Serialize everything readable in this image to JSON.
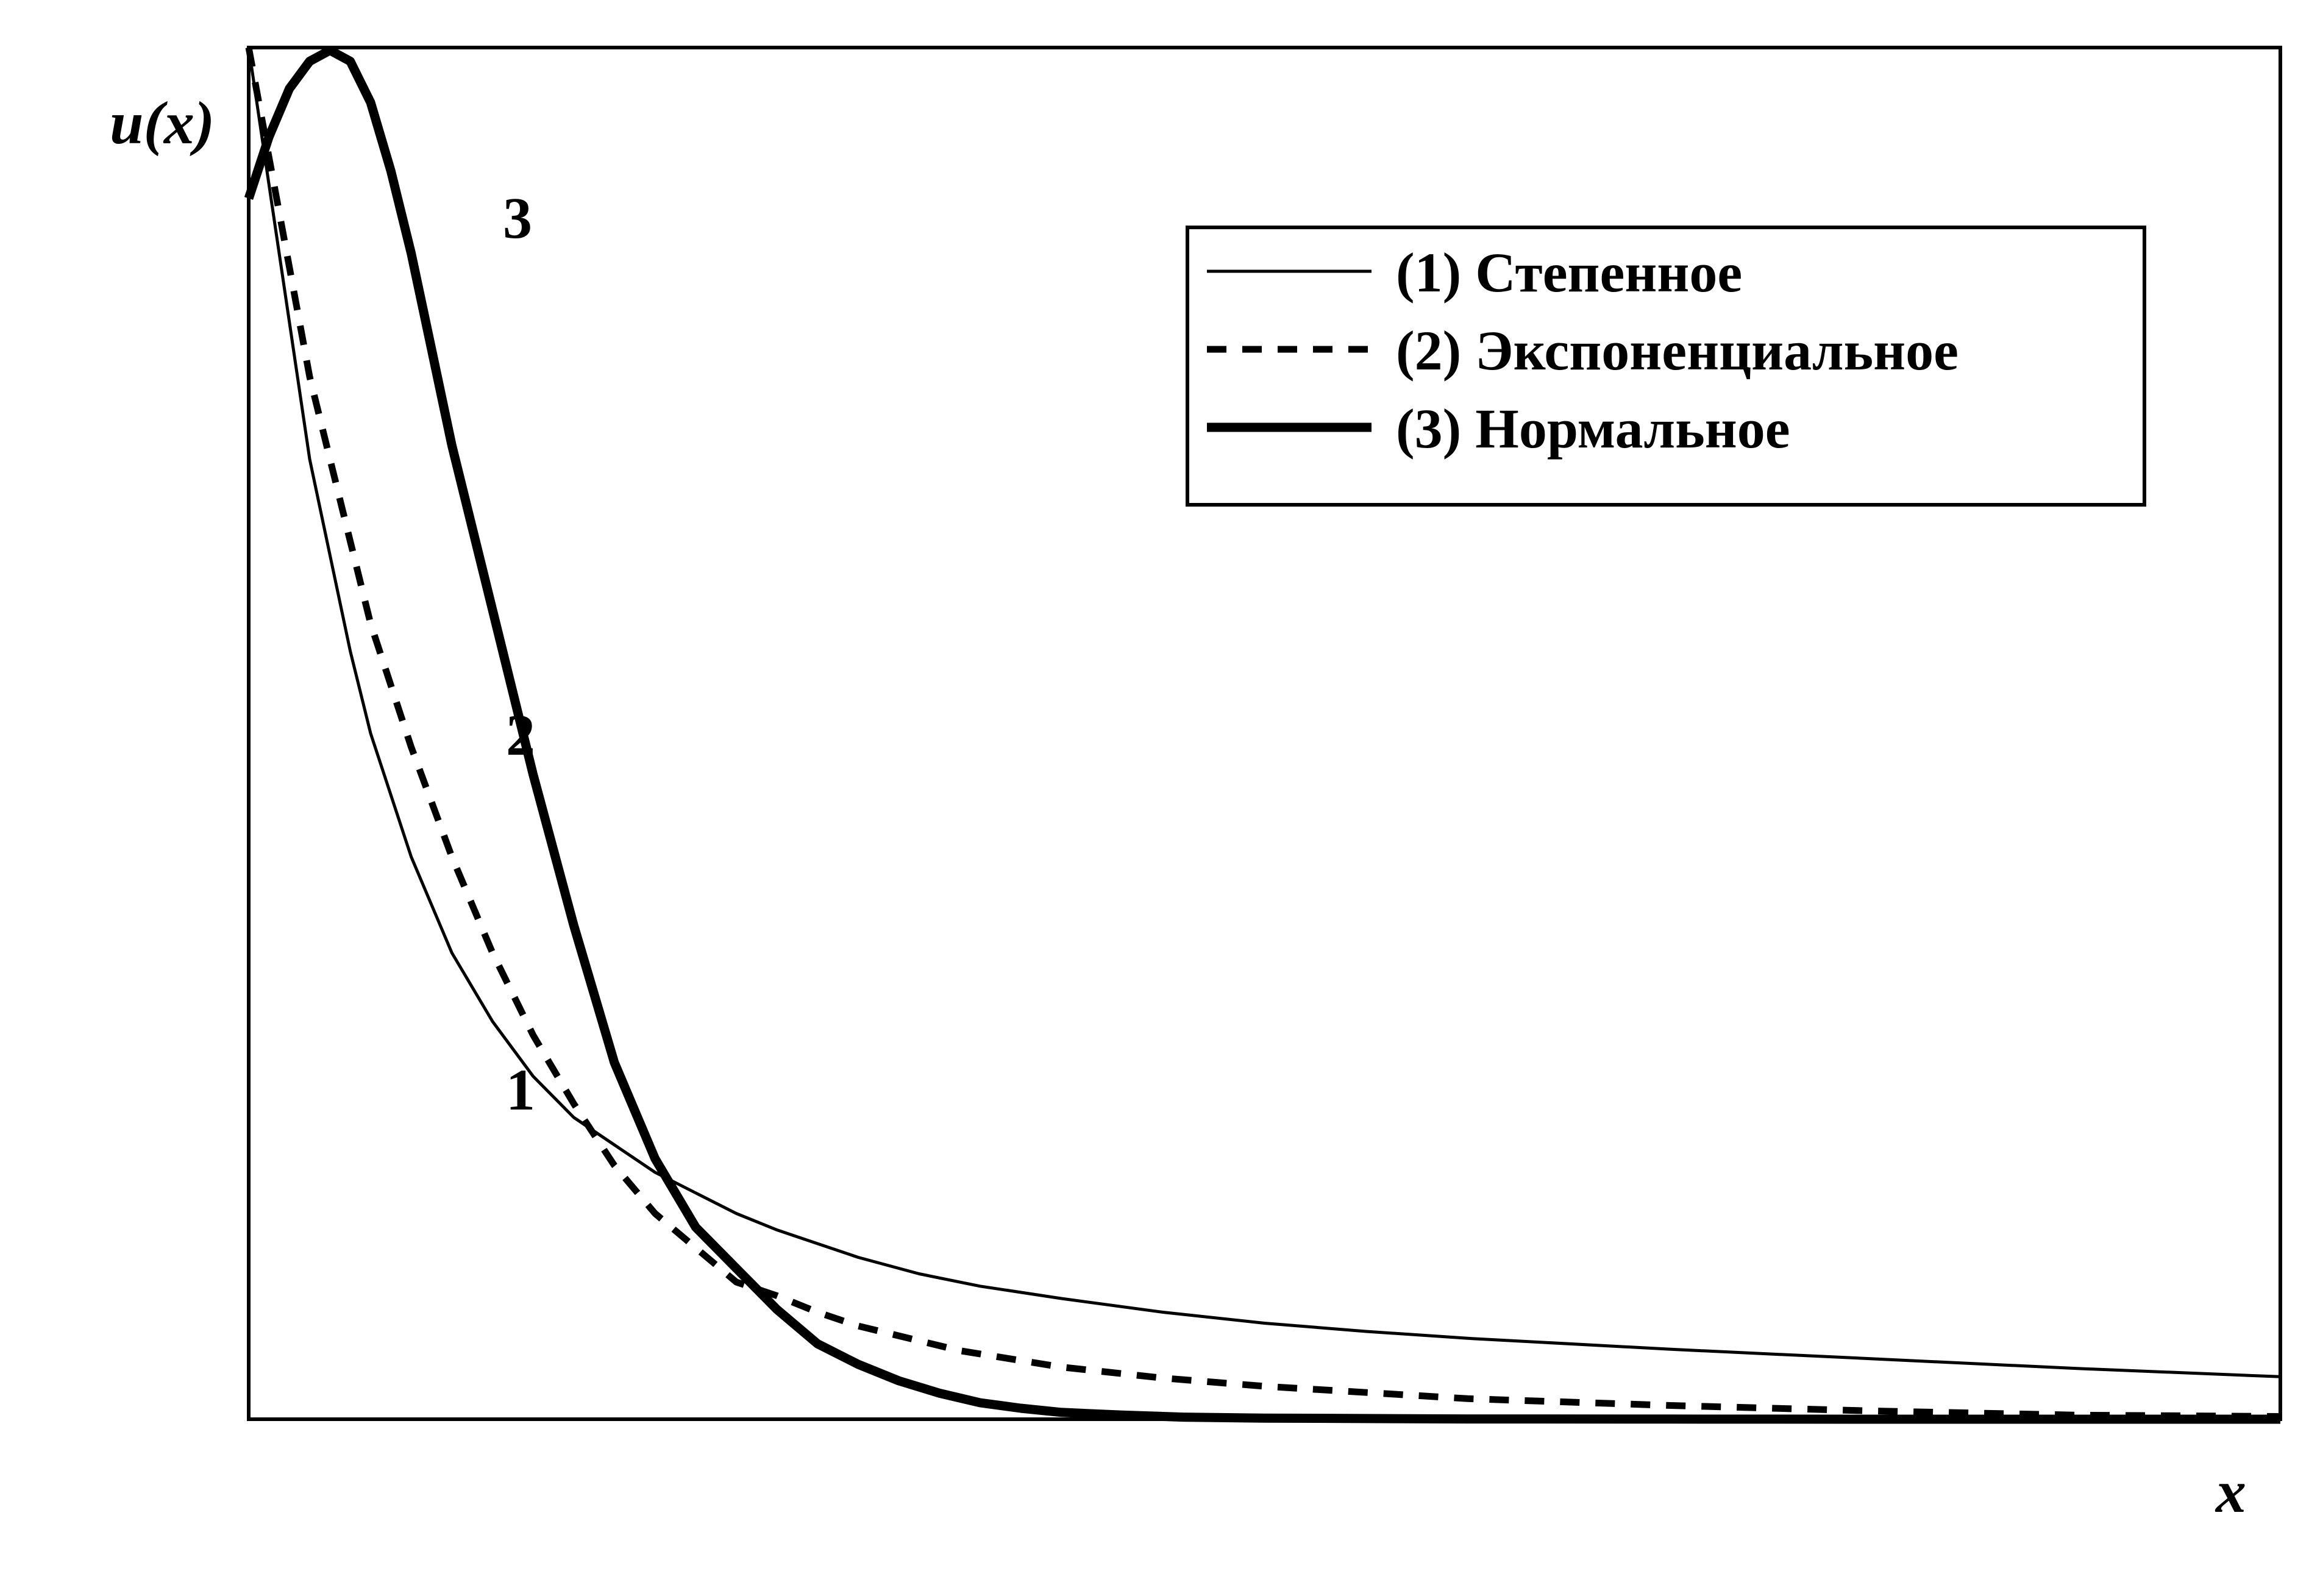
{
  "chart_data": {
    "type": "line",
    "xlabel": "x",
    "ylabel": "u(x)",
    "xlim": [
      0,
      10
    ],
    "ylim": [
      0,
      1
    ],
    "grid": false,
    "legend_position": "top-right",
    "series": [
      {
        "name": "(1) Степенное",
        "curve_label": "1",
        "style": "thin-solid",
        "x": [
          0,
          0.1,
          0.2,
          0.3,
          0.4,
          0.5,
          0.6,
          0.8,
          1.0,
          1.2,
          1.4,
          1.6,
          1.8,
          2.0,
          2.2,
          2.4,
          2.6,
          2.8,
          3.0,
          3.3,
          3.6,
          4.0,
          4.5,
          5.0,
          5.5,
          6.0,
          7.0,
          8.0,
          9.0,
          10.0
        ],
        "y": [
          1.0,
          0.9,
          0.8,
          0.7,
          0.63,
          0.56,
          0.5,
          0.41,
          0.34,
          0.29,
          0.25,
          0.22,
          0.2,
          0.18,
          0.165,
          0.15,
          0.138,
          0.128,
          0.118,
          0.106,
          0.097,
          0.088,
          0.078,
          0.07,
          0.064,
          0.059,
          0.051,
          0.044,
          0.037,
          0.031
        ]
      },
      {
        "name": "(2) Экспоненциальное",
        "curve_label": "2",
        "style": "dashed",
        "x": [
          0,
          0.1,
          0.2,
          0.3,
          0.4,
          0.5,
          0.6,
          0.8,
          1.0,
          1.2,
          1.4,
          1.6,
          1.8,
          2.0,
          2.2,
          2.4,
          2.6,
          2.8,
          3.0,
          3.5,
          4.0,
          4.5,
          5.0,
          6.0,
          7.0,
          8.0,
          9.0,
          10.0
        ],
        "y": [
          1.0,
          0.92,
          0.84,
          0.76,
          0.7,
          0.64,
          0.58,
          0.49,
          0.41,
          0.34,
          0.28,
          0.23,
          0.185,
          0.15,
          0.125,
          0.1,
          0.09,
          0.078,
          0.068,
          0.05,
          0.038,
          0.03,
          0.024,
          0.015,
          0.01,
          0.006,
          0.003,
          0.002
        ]
      },
      {
        "name": "(3) Нормальное",
        "curve_label": "3",
        "style": "thick-solid",
        "x": [
          0,
          0.1,
          0.2,
          0.3,
          0.4,
          0.5,
          0.6,
          0.7,
          0.8,
          0.9,
          1.0,
          1.2,
          1.4,
          1.6,
          1.8,
          2.0,
          2.2,
          2.4,
          2.6,
          2.8,
          3.0,
          3.2,
          3.4,
          3.6,
          3.8,
          4.0,
          4.3,
          4.6,
          5.0,
          6.0,
          7.0,
          8.0,
          10.0
        ],
        "y": [
          0.89,
          0.935,
          0.97,
          0.99,
          0.998,
          0.99,
          0.96,
          0.91,
          0.85,
          0.78,
          0.71,
          0.59,
          0.47,
          0.36,
          0.26,
          0.19,
          0.14,
          0.11,
          0.08,
          0.055,
          0.04,
          0.028,
          0.019,
          0.012,
          0.008,
          0.005,
          0.003,
          0.0015,
          0.0008,
          0.0002,
          0.0001,
          0.0,
          0.0
        ]
      }
    ]
  }
}
